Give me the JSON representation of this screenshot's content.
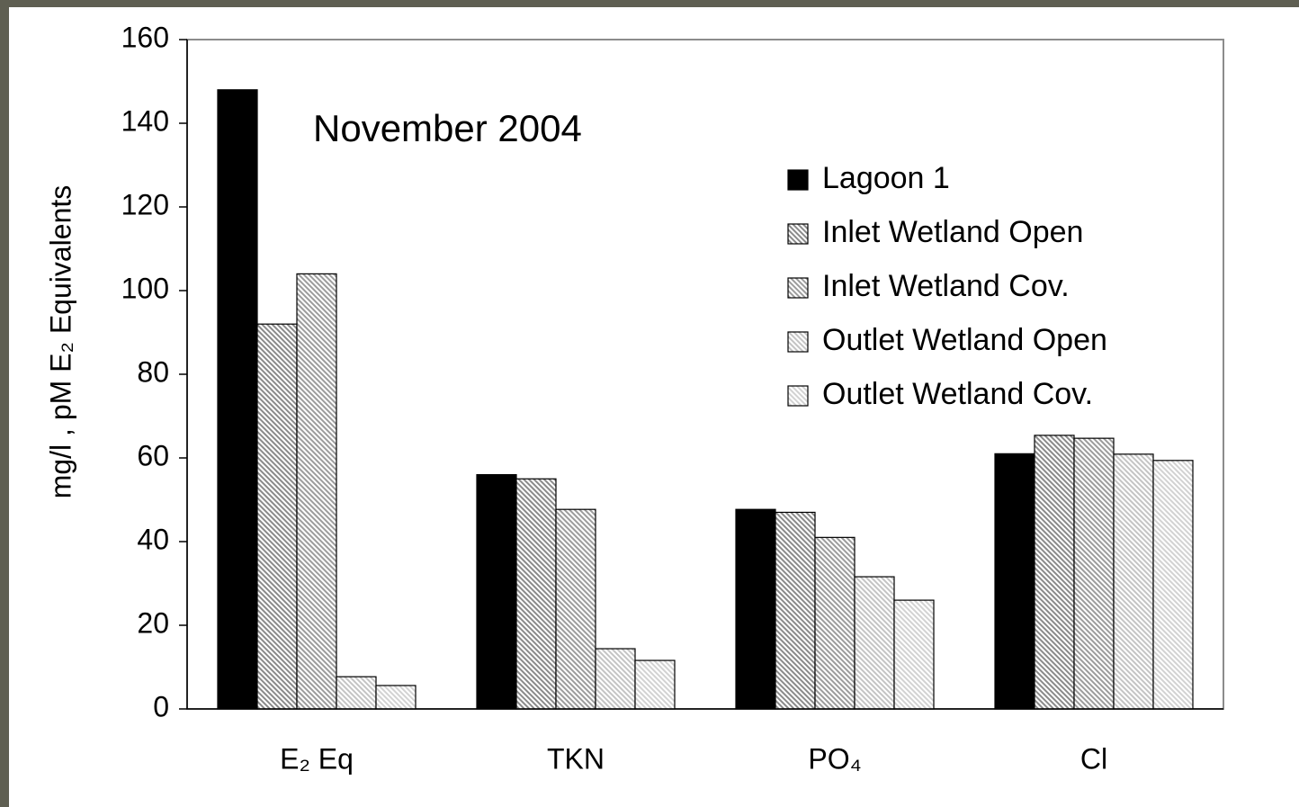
{
  "chart_data": {
    "type": "bar",
    "title": "November 2004",
    "y_label": "mg/l , pM E₂ Equivalents",
    "categories": [
      "E₂ Eq",
      "TKN",
      "PO₄",
      "Cl"
    ],
    "series": [
      {
        "name": "Lagoon 1",
        "color": "#000000",
        "values": [
          148,
          56,
          47.7,
          61
        ]
      },
      {
        "name": "Inlet Wetland Open",
        "color": "#8a8a8a",
        "values": [
          92,
          55,
          47,
          65.4
        ]
      },
      {
        "name": "Inlet Wetland Cov.",
        "color": "#9c9c9c",
        "values": [
          104,
          47.7,
          41,
          64.7
        ]
      },
      {
        "name": "Outlet Wetland Open",
        "color": "#c4c4c4",
        "values": [
          7.7,
          14.4,
          31.6,
          60.9
        ]
      },
      {
        "name": "Outlet Wetland Cov.",
        "color": "#d2d2d2",
        "values": [
          5.6,
          11.6,
          26,
          59.4
        ]
      }
    ],
    "ylim": [
      0,
      160
    ],
    "yticks": [
      0,
      20,
      40,
      60,
      80,
      100,
      120,
      140,
      160
    ],
    "grid": false,
    "legend": "upper-right"
  }
}
